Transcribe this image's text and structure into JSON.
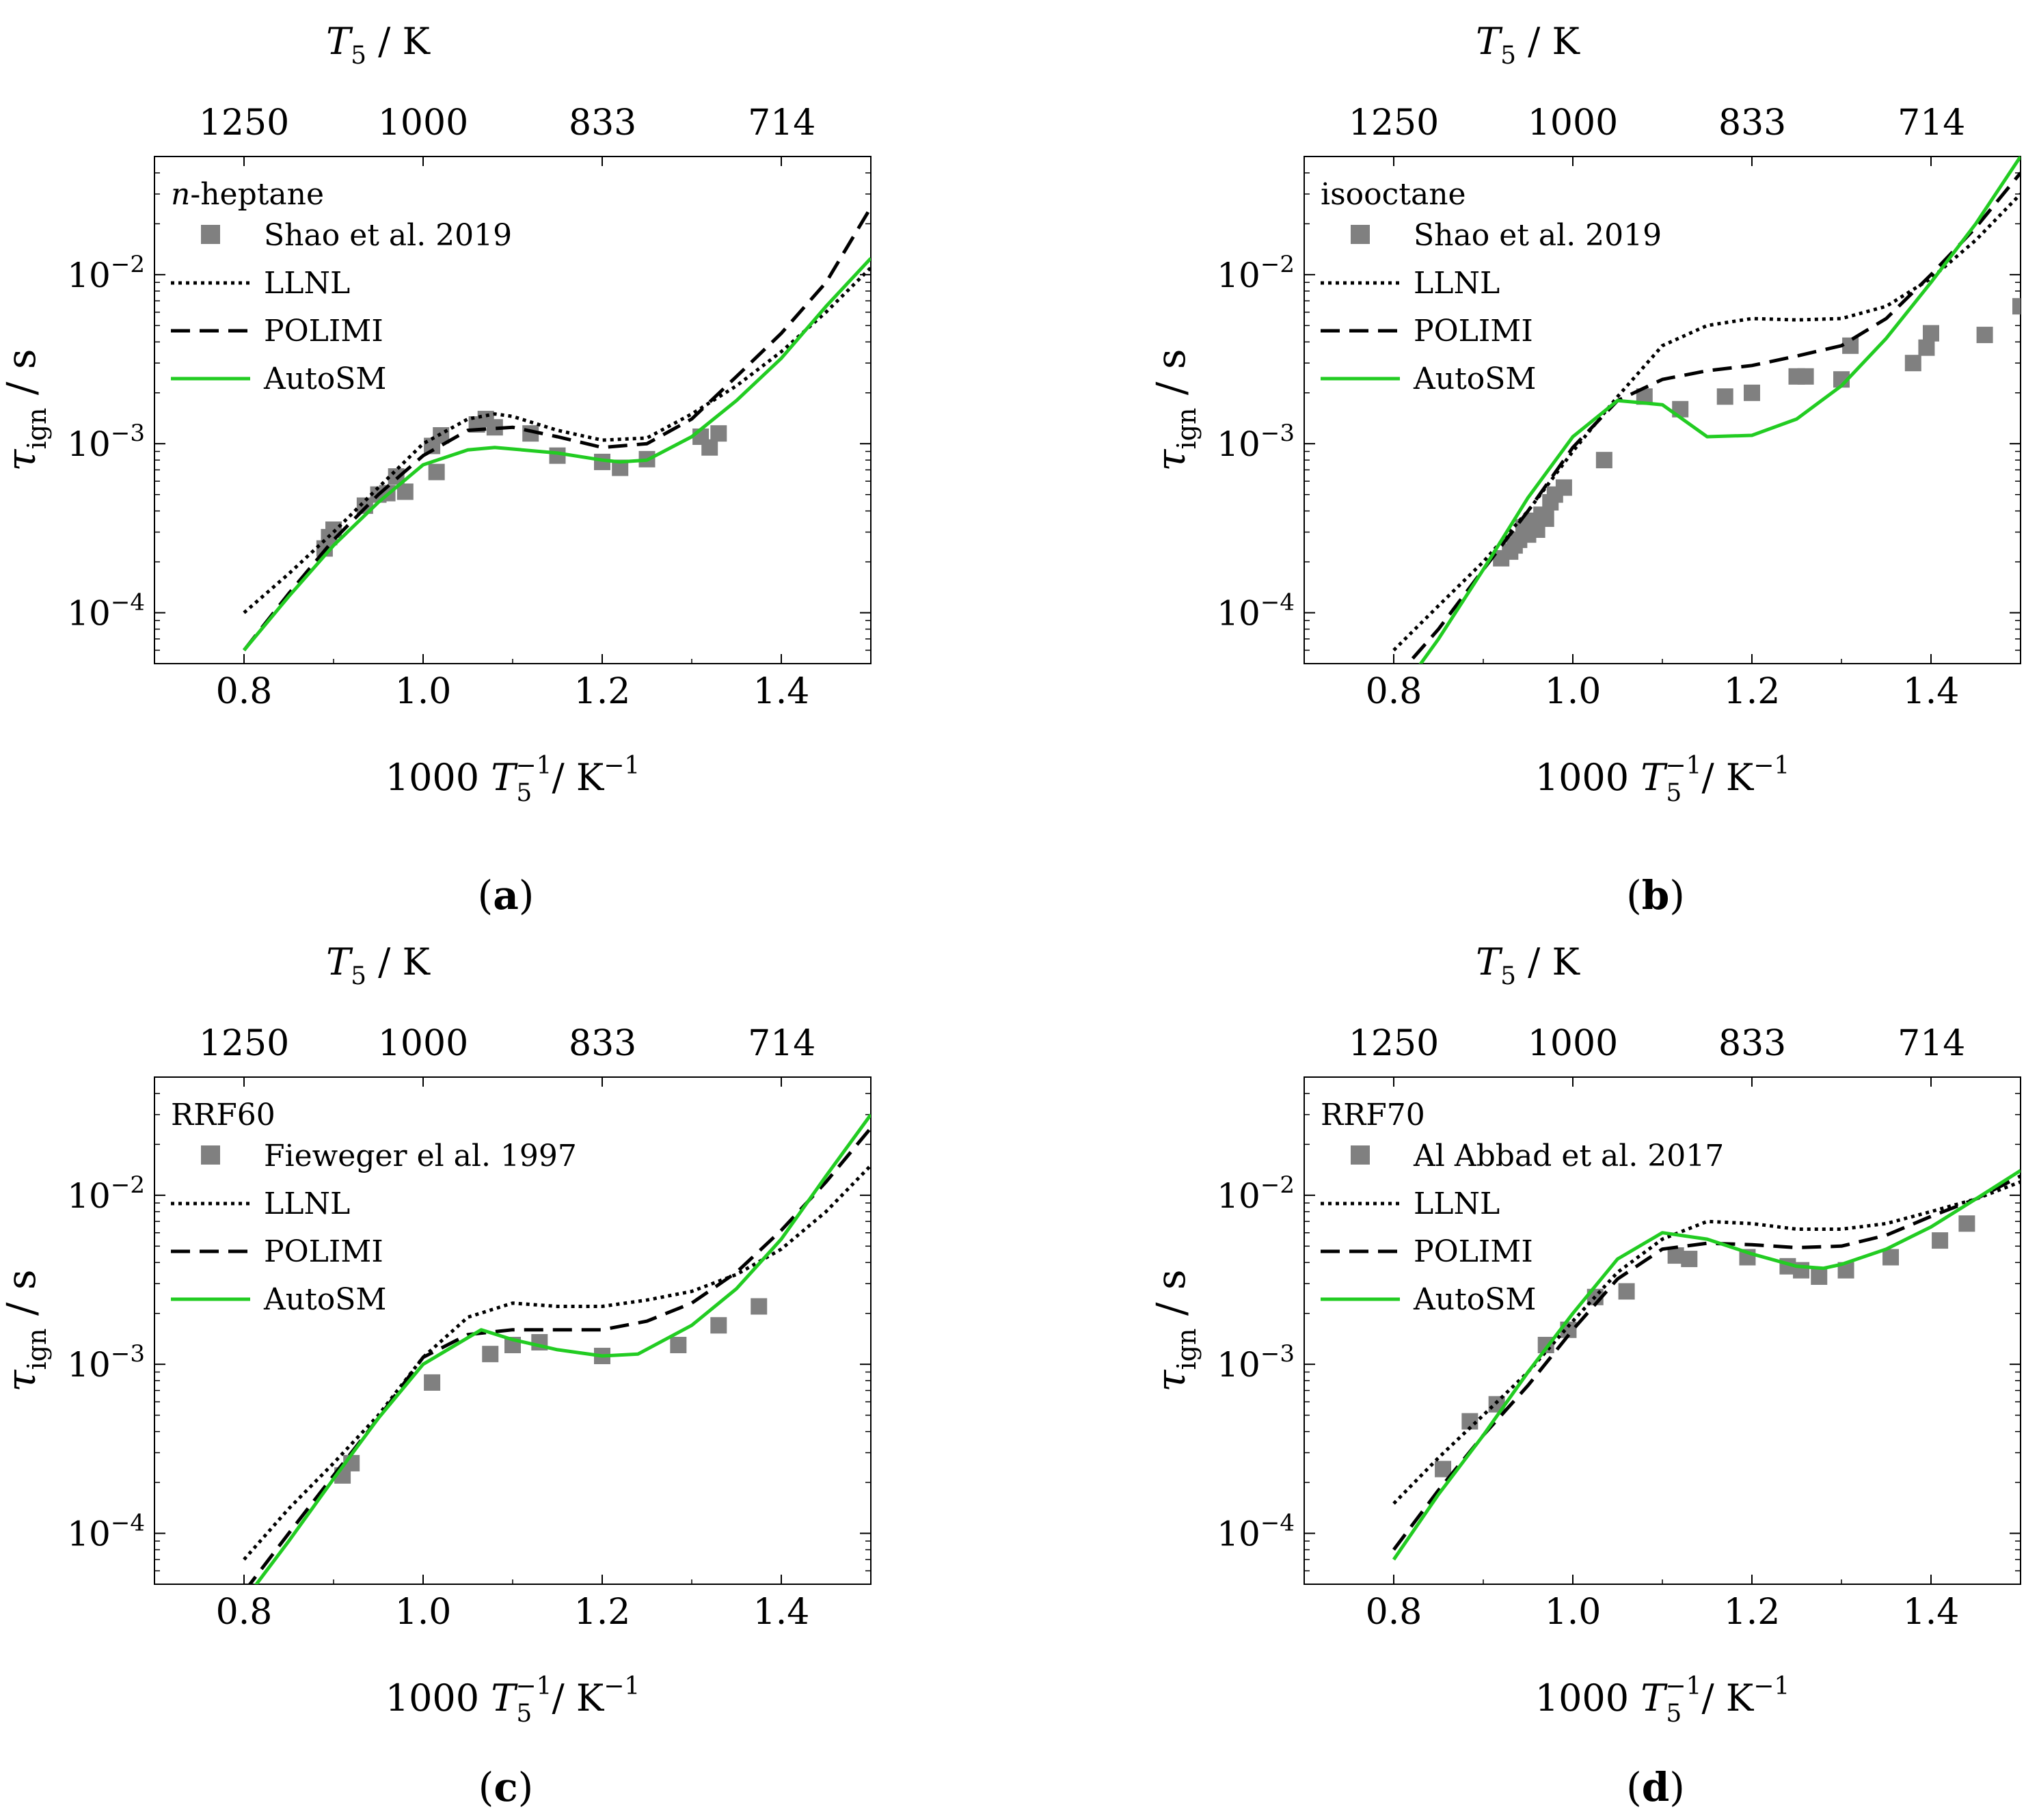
{
  "colors": {
    "experiment": "#808080",
    "llnl": "#000000",
    "polimi": "#000000",
    "autosm": "#22cc22",
    "axis": "#000000"
  },
  "chart_data": [
    {
      "type": "line",
      "panel_label": "a",
      "panel_caption": "(a)",
      "fuel": "n-heptane",
      "fuel_prefix": "n",
      "fuel_suffix": "-heptane",
      "xlabel": "1000 T5−1 / K−1",
      "ylabel": "τign / s",
      "top_axis_label": "T5 / K",
      "xlim": [
        0.7,
        1.5
      ],
      "ylim": [
        5e-05,
        0.05
      ],
      "yscale": "log",
      "x_ticks": [
        0.8,
        1.0,
        1.2,
        1.4
      ],
      "x_tick_labels": [
        "0.8",
        "1.0",
        "1.2",
        "1.4"
      ],
      "y_ticks": [
        0.0001,
        0.001,
        0.01
      ],
      "y_tick_labels": [
        "10-4",
        "10-3",
        "10-2"
      ],
      "top_ticks": [
        1250,
        1000,
        833,
        714
      ],
      "top_tick_labels": [
        "1250",
        "1000",
        "833",
        "714"
      ],
      "legend": [
        "Shao et al. 2019",
        "LLNL",
        "POLIMI",
        "AutoSM"
      ],
      "legend_position": "top-left",
      "experiment": {
        "name": "Shao et al. 2019",
        "x": [
          0.89,
          0.895,
          0.9,
          0.935,
          0.95,
          0.96,
          0.97,
          0.98,
          1.01,
          1.015,
          1.02,
          1.06,
          1.07,
          1.08,
          1.12,
          1.15,
          1.2,
          1.22,
          1.25,
          1.31,
          1.32,
          1.33
        ],
        "y": [
          0.00024,
          0.00028,
          0.00031,
          0.00043,
          0.0005,
          0.00051,
          0.00064,
          0.00052,
          0.00097,
          0.00068,
          0.00112,
          0.0013,
          0.0014,
          0.00125,
          0.00115,
          0.00085,
          0.00078,
          0.00072,
          0.00081,
          0.0011,
          0.00095,
          0.00115
        ]
      },
      "series": [
        {
          "name": "LLNL",
          "style": "dotted",
          "x": [
            0.8,
            0.85,
            0.9,
            0.95,
            1.0,
            1.05,
            1.08,
            1.1,
            1.15,
            1.2,
            1.25,
            1.3,
            1.35,
            1.4,
            1.45,
            1.5
          ],
          "y": [
            0.0001,
            0.00017,
            0.0003,
            0.00055,
            0.001,
            0.0014,
            0.0015,
            0.00145,
            0.0012,
            0.00105,
            0.00108,
            0.0015,
            0.0022,
            0.0035,
            0.006,
            0.011
          ]
        },
        {
          "name": "POLIMI",
          "style": "dashed",
          "x": [
            0.8,
            0.85,
            0.9,
            0.95,
            1.0,
            1.05,
            1.1,
            1.15,
            1.2,
            1.25,
            1.3,
            1.35,
            1.4,
            1.45,
            1.5
          ],
          "y": [
            6e-05,
            0.00013,
            0.00027,
            0.0005,
            0.00085,
            0.0012,
            0.00125,
            0.0011,
            0.00095,
            0.001,
            0.0014,
            0.0025,
            0.0045,
            0.009,
            0.025
          ]
        },
        {
          "name": "AutoSM",
          "style": "solid",
          "x": [
            0.8,
            0.85,
            0.9,
            0.95,
            1.0,
            1.05,
            1.08,
            1.1,
            1.15,
            1.2,
            1.22,
            1.25,
            1.3,
            1.35,
            1.4,
            1.45,
            1.5
          ],
          "y": [
            6e-05,
            0.000125,
            0.00025,
            0.00045,
            0.00075,
            0.00092,
            0.00095,
            0.00093,
            0.00088,
            0.0008,
            0.00078,
            0.0008,
            0.0011,
            0.0018,
            0.0032,
            0.0065,
            0.0125
          ]
        }
      ]
    },
    {
      "type": "line",
      "panel_label": "b",
      "panel_caption": "(b)",
      "fuel": "isooctane",
      "xlabel": "1000 T5−1 / K−1",
      "ylabel": "τign / s",
      "top_axis_label": "T5 / K",
      "xlim": [
        0.7,
        1.5
      ],
      "ylim": [
        5e-05,
        0.05
      ],
      "yscale": "log",
      "x_ticks": [
        0.8,
        1.0,
        1.2,
        1.4
      ],
      "x_tick_labels": [
        "0.8",
        "1.0",
        "1.2",
        "1.4"
      ],
      "y_ticks": [
        0.0001,
        0.001,
        0.01
      ],
      "y_tick_labels": [
        "10-4",
        "10-3",
        "10-2"
      ],
      "top_ticks": [
        1250,
        1000,
        833,
        714
      ],
      "top_tick_labels": [
        "1250",
        "1000",
        "833",
        "714"
      ],
      "legend": [
        "Shao et al. 2019",
        "LLNL",
        "POLIMI",
        "AutoSM"
      ],
      "legend_position": "top-left",
      "experiment": {
        "name": "Shao et al. 2019",
        "x": [
          0.92,
          0.93,
          0.935,
          0.94,
          0.945,
          0.95,
          0.955,
          0.96,
          0.965,
          0.97,
          0.975,
          0.98,
          0.99,
          1.035,
          1.08,
          1.12,
          1.17,
          1.2,
          1.25,
          1.26,
          1.3,
          1.31,
          1.38,
          1.395,
          1.4,
          1.46,
          1.5
        ],
        "y": [
          0.00021,
          0.00023,
          0.00025,
          0.00027,
          0.00032,
          0.00029,
          0.00035,
          0.00031,
          0.00038,
          0.00036,
          0.00045,
          0.0005,
          0.00055,
          0.0008,
          0.0019,
          0.0016,
          0.0019,
          0.002,
          0.0025,
          0.0025,
          0.0024,
          0.0038,
          0.003,
          0.0037,
          0.0045,
          0.0044,
          0.0065
        ]
      },
      "series": [
        {
          "name": "LLNL",
          "style": "dotted",
          "x": [
            0.8,
            0.85,
            0.9,
            0.95,
            1.0,
            1.05,
            1.1,
            1.15,
            1.2,
            1.25,
            1.3,
            1.35,
            1.4,
            1.45,
            1.5
          ],
          "y": [
            6e-05,
            0.00011,
            0.0002,
            0.0004,
            0.0009,
            0.0019,
            0.0038,
            0.005,
            0.0055,
            0.0054,
            0.0055,
            0.0065,
            0.0095,
            0.016,
            0.03
          ]
        },
        {
          "name": "POLIMI",
          "style": "dashed",
          "x": [
            0.8,
            0.85,
            0.9,
            0.95,
            1.0,
            1.05,
            1.1,
            1.15,
            1.2,
            1.25,
            1.3,
            1.35,
            1.4,
            1.45,
            1.5
          ],
          "y": [
            4e-05,
            8e-05,
            0.00018,
            0.0004,
            0.00095,
            0.0018,
            0.0024,
            0.0027,
            0.0029,
            0.0033,
            0.0038,
            0.0055,
            0.01,
            0.019,
            0.04
          ]
        },
        {
          "name": "AutoSM",
          "style": "solid",
          "x": [
            0.8,
            0.85,
            0.9,
            0.95,
            1.0,
            1.05,
            1.1,
            1.15,
            1.2,
            1.25,
            1.3,
            1.35,
            1.4,
            1.45,
            1.5
          ],
          "y": [
            3e-05,
            7e-05,
            0.00018,
            0.00048,
            0.0011,
            0.0018,
            0.0017,
            0.0011,
            0.00112,
            0.0014,
            0.0022,
            0.0042,
            0.009,
            0.02,
            0.05
          ]
        }
      ]
    },
    {
      "type": "line",
      "panel_label": "c",
      "panel_caption": "(c)",
      "fuel": "RRF60",
      "xlabel": "1000 T5−1 / K−1",
      "ylabel": "τign / s",
      "top_axis_label": "T5 / K",
      "xlim": [
        0.7,
        1.5
      ],
      "ylim": [
        5e-05,
        0.05
      ],
      "yscale": "log",
      "x_ticks": [
        0.8,
        1.0,
        1.2,
        1.4
      ],
      "x_tick_labels": [
        "0.8",
        "1.0",
        "1.2",
        "1.4"
      ],
      "y_ticks": [
        0.0001,
        0.001,
        0.01
      ],
      "y_tick_labels": [
        "10-4",
        "10-3",
        "10-2"
      ],
      "top_ticks": [
        1250,
        1000,
        833,
        714
      ],
      "top_tick_labels": [
        "1250",
        "1000",
        "833",
        "714"
      ],
      "legend": [
        "Fieweger el al. 1997",
        "LLNL",
        "POLIMI",
        "AutoSM"
      ],
      "legend_position": "top-left",
      "experiment": {
        "name": "Fieweger el al. 1997",
        "x": [
          0.91,
          0.92,
          1.01,
          1.075,
          1.1,
          1.13,
          1.2,
          1.285,
          1.33,
          1.375
        ],
        "y": [
          0.00022,
          0.00026,
          0.00078,
          0.00115,
          0.0013,
          0.00135,
          0.00112,
          0.0013,
          0.0017,
          0.0022
        ]
      },
      "series": [
        {
          "name": "LLNL",
          "style": "dotted",
          "x": [
            0.8,
            0.85,
            0.9,
            0.95,
            1.0,
            1.05,
            1.1,
            1.15,
            1.2,
            1.25,
            1.3,
            1.35,
            1.4,
            1.45,
            1.5
          ],
          "y": [
            7e-05,
            0.00014,
            0.00026,
            0.0005,
            0.0011,
            0.0019,
            0.0023,
            0.0022,
            0.0022,
            0.0024,
            0.0027,
            0.0034,
            0.0048,
            0.008,
            0.015
          ]
        },
        {
          "name": "POLIMI",
          "style": "dashed",
          "x": [
            0.8,
            0.85,
            0.9,
            0.95,
            1.0,
            1.05,
            1.1,
            1.15,
            1.2,
            1.25,
            1.3,
            1.35,
            1.4,
            1.45,
            1.5
          ],
          "y": [
            4.5e-05,
            0.0001,
            0.00022,
            0.00048,
            0.0011,
            0.0015,
            0.0016,
            0.0016,
            0.0016,
            0.0018,
            0.0023,
            0.0035,
            0.0062,
            0.012,
            0.025
          ]
        },
        {
          "name": "AutoSM",
          "style": "solid",
          "x": [
            0.8,
            0.85,
            0.9,
            0.95,
            1.0,
            1.065,
            1.1,
            1.15,
            1.2,
            1.24,
            1.3,
            1.35,
            1.4,
            1.45,
            1.5
          ],
          "y": [
            4e-05,
            9e-05,
            0.00021,
            0.00048,
            0.001,
            0.0016,
            0.0014,
            0.00122,
            0.00112,
            0.00115,
            0.0017,
            0.0028,
            0.0055,
            0.013,
            0.03
          ]
        }
      ]
    },
    {
      "type": "line",
      "panel_label": "d",
      "panel_caption": "(d)",
      "fuel": "RRF70",
      "xlabel": "1000 T5−1 / K−1",
      "ylabel": "τign / s",
      "top_axis_label": "T5 / K",
      "xlim": [
        0.7,
        1.5
      ],
      "ylim": [
        5e-05,
        0.05
      ],
      "yscale": "log",
      "x_ticks": [
        0.8,
        1.0,
        1.2,
        1.4
      ],
      "x_tick_labels": [
        "0.8",
        "1.0",
        "1.2",
        "1.4"
      ],
      "y_ticks": [
        0.0001,
        0.001,
        0.01
      ],
      "y_tick_labels": [
        "10-4",
        "10-3",
        "10-2"
      ],
      "top_ticks": [
        1250,
        1000,
        833,
        714
      ],
      "top_tick_labels": [
        "1250",
        "1000",
        "833",
        "714"
      ],
      "legend": [
        "Al Abbad et al. 2017",
        "LLNL",
        "POLIMI",
        "AutoSM"
      ],
      "legend_position": "top-left",
      "experiment": {
        "name": "Al Abbad et al. 2017",
        "x": [
          0.855,
          0.885,
          0.915,
          0.97,
          0.995,
          1.025,
          1.06,
          1.115,
          1.13,
          1.195,
          1.24,
          1.255,
          1.275,
          1.305,
          1.355,
          1.41,
          1.44
        ],
        "y": [
          0.00024,
          0.00046,
          0.00058,
          0.0013,
          0.0016,
          0.0025,
          0.0027,
          0.0044,
          0.0042,
          0.0043,
          0.0038,
          0.0036,
          0.0033,
          0.0036,
          0.0043,
          0.0054,
          0.0068
        ]
      },
      "series": [
        {
          "name": "LLNL",
          "style": "dotted",
          "x": [
            0.8,
            0.85,
            0.9,
            0.95,
            1.0,
            1.05,
            1.1,
            1.15,
            1.2,
            1.25,
            1.3,
            1.35,
            1.4,
            1.45,
            1.5
          ],
          "y": [
            0.00015,
            0.00028,
            0.0005,
            0.0009,
            0.0018,
            0.0035,
            0.0055,
            0.007,
            0.0068,
            0.0063,
            0.0063,
            0.0068,
            0.008,
            0.0095,
            0.012
          ]
        },
        {
          "name": "POLIMI",
          "style": "dashed",
          "x": [
            0.8,
            0.85,
            0.9,
            0.95,
            1.0,
            1.05,
            1.1,
            1.15,
            1.2,
            1.25,
            1.3,
            1.35,
            1.4,
            1.45,
            1.5
          ],
          "y": [
            8e-05,
            0.00018,
            0.00038,
            0.00075,
            0.0016,
            0.0032,
            0.0048,
            0.0052,
            0.0051,
            0.0049,
            0.005,
            0.0058,
            0.0075,
            0.0095,
            0.013
          ]
        },
        {
          "name": "AutoSM",
          "style": "solid",
          "x": [
            0.8,
            0.85,
            0.9,
            0.95,
            1.0,
            1.05,
            1.1,
            1.15,
            1.2,
            1.25,
            1.28,
            1.3,
            1.35,
            1.4,
            1.45,
            1.5
          ],
          "y": [
            7e-05,
            0.00017,
            0.00038,
            0.0009,
            0.002,
            0.0042,
            0.006,
            0.0055,
            0.0045,
            0.0038,
            0.0037,
            0.0039,
            0.0048,
            0.0065,
            0.0095,
            0.014
          ]
        }
      ]
    }
  ]
}
